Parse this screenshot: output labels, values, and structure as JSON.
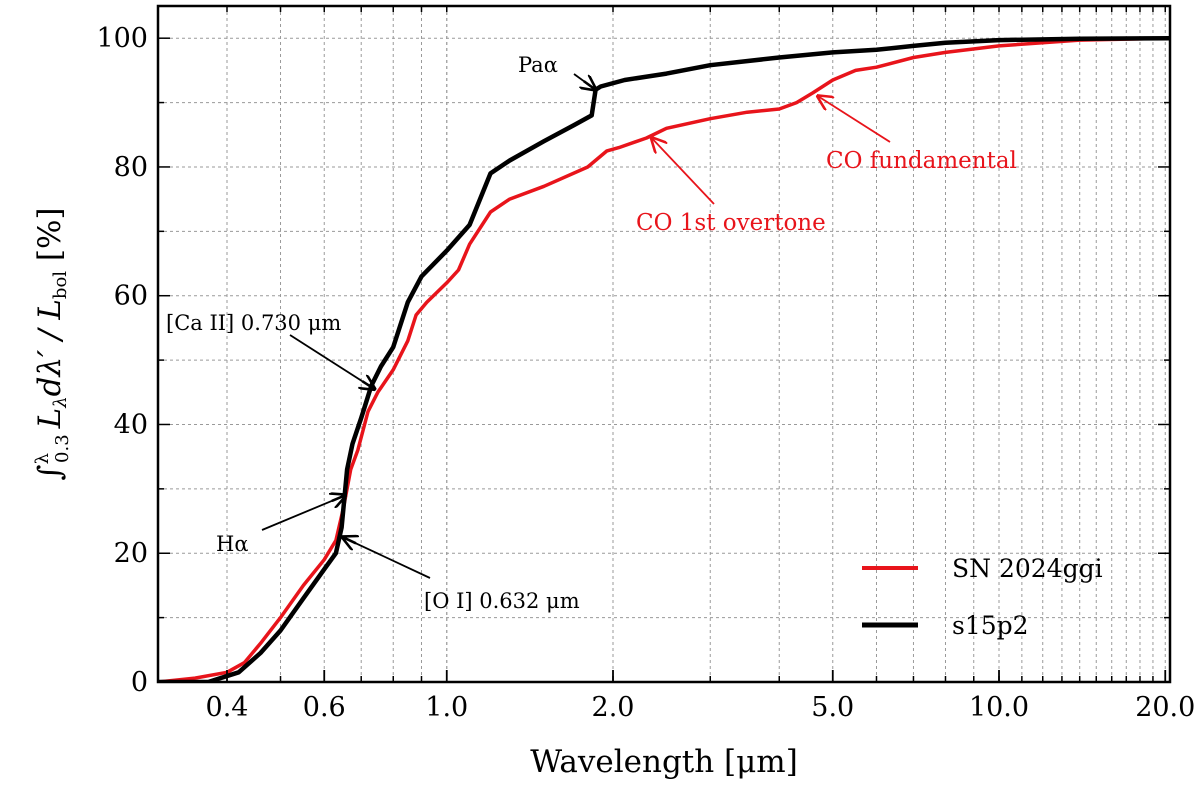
{
  "chart_data": {
    "type": "line",
    "title": "",
    "xlabel": "Wavelength [μm]",
    "ylabel": "∫λ0.3 Lλ dλ′ / Lbol [%]",
    "ylabel_parts": {
      "integral": "∫",
      "sup": "λ",
      "sub": "0.3",
      "L": "L",
      "Lsub": "λ",
      "dl": "dλ′ / ",
      "Lbol": "L",
      "bol": "bol",
      "unit": " [%]"
    },
    "xscale": "log",
    "xlim": [
      0.3,
      20.4
    ],
    "ylim": [
      0,
      105
    ],
    "grid": true,
    "legend_position": "lower-right",
    "x_ticks": [
      {
        "value": 0.4,
        "label": "0.4"
      },
      {
        "value": 0.6,
        "label": "0.6"
      },
      {
        "value": 1.0,
        "label": "1.0"
      },
      {
        "value": 2.0,
        "label": "2.0"
      },
      {
        "value": 5.0,
        "label": "5.0"
      },
      {
        "value": 10.0,
        "label": "10.0"
      },
      {
        "value": 20.0,
        "label": "20.0"
      }
    ],
    "y_ticks": [
      {
        "value": 0,
        "label": "0"
      },
      {
        "value": 20,
        "label": "20"
      },
      {
        "value": 40,
        "label": "40"
      },
      {
        "value": 60,
        "label": "60"
      },
      {
        "value": 80,
        "label": "80"
      },
      {
        "value": 100,
        "label": "100"
      }
    ],
    "series": [
      {
        "name": "SN 2024ggi",
        "color": "#e8141b",
        "x": [
          0.3,
          0.35,
          0.4,
          0.43,
          0.46,
          0.5,
          0.55,
          0.6,
          0.63,
          0.65,
          0.67,
          0.69,
          0.72,
          0.75,
          0.8,
          0.85,
          0.88,
          0.92,
          1.0,
          1.05,
          1.1,
          1.2,
          1.3,
          1.5,
          1.8,
          1.95,
          2.05,
          2.3,
          2.5,
          3.0,
          3.5,
          4.0,
          4.3,
          4.6,
          5.0,
          5.5,
          6.0,
          7.0,
          8.0,
          10.0,
          14.0,
          20.4
        ],
        "y": [
          0,
          0.6,
          1.5,
          3,
          6,
          10,
          15,
          19,
          22,
          27,
          33,
          36,
          42,
          45,
          48.5,
          53,
          57,
          59,
          62,
          64,
          68,
          73,
          75,
          77,
          80,
          82.5,
          83,
          84.5,
          86,
          87.5,
          88.5,
          89,
          90,
          91.5,
          93.5,
          95,
          95.5,
          97,
          97.8,
          98.8,
          99.7,
          100
        ]
      },
      {
        "name": "s15p2",
        "color": "#000000",
        "x": [
          0.3,
          0.37,
          0.42,
          0.46,
          0.5,
          0.55,
          0.6,
          0.63,
          0.645,
          0.66,
          0.675,
          0.7,
          0.73,
          0.76,
          0.8,
          0.85,
          0.9,
          1.0,
          1.1,
          1.2,
          1.3,
          1.5,
          1.7,
          1.83,
          1.86,
          1.9,
          2.1,
          2.5,
          3.0,
          4.0,
          5.0,
          6.0,
          7.0,
          8.0,
          10.0,
          14.0,
          20.4
        ],
        "y": [
          0,
          0,
          1.5,
          4.5,
          8,
          13,
          17.5,
          20,
          24,
          33,
          37,
          41,
          46,
          49,
          52,
          59,
          63,
          67,
          71,
          79,
          81,
          84,
          86.5,
          88,
          92,
          92.5,
          93.5,
          94.5,
          95.8,
          97,
          97.8,
          98.2,
          98.8,
          99.3,
          99.7,
          99.9,
          100
        ]
      }
    ],
    "annotations": [
      {
        "text": "Paα",
        "color": "#000000",
        "point_x": 1.86,
        "point_y": 92
      },
      {
        "text": "[Ca II] 0.730 μm",
        "color": "#000000",
        "point_x": 0.74,
        "point_y": 45.5
      },
      {
        "text": "Hα",
        "color": "#000000",
        "point_x": 0.655,
        "point_y": 29
      },
      {
        "text": "[O I] 0.632 μm",
        "color": "#000000",
        "point_x": 0.648,
        "point_y": 22.5
      },
      {
        "text": "CO fundamental",
        "color": "#e8141b",
        "point_x": 4.7,
        "point_y": 91
      },
      {
        "text": "CO 1st overtone",
        "color": "#e8141b",
        "point_x": 2.35,
        "point_y": 84.5
      }
    ]
  }
}
